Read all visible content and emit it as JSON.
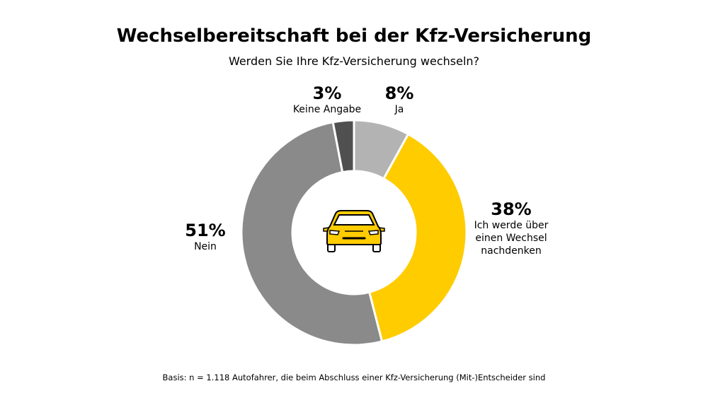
{
  "chart_data": {
    "type": "pie",
    "donut": true,
    "title": "Wechselbereitschaft bei der Kfz-Versicherung",
    "subtitle": "Werden Sie Ihre Kfz-Versicherung wechseln?",
    "categories": [
      "Ja",
      "Ich werde über einen Wechsel nachdenken",
      "Nein",
      "Keine Angabe"
    ],
    "values": [
      8,
      38,
      51,
      3
    ],
    "value_labels": [
      "8%",
      "38%",
      "51%",
      "3%"
    ],
    "colors": [
      "#b3b3b3",
      "#ffcc00",
      "#8a8a8a",
      "#505050"
    ],
    "center_icon": "car-icon",
    "note": "Basis: n = 1.118 Autofahrer, die beim Abschluss einer Kfz-Versicherung (Mit-)Entscheider sind"
  }
}
